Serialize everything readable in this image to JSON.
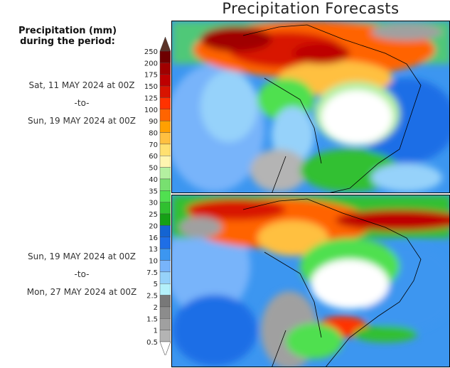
{
  "title": "Precipitation Forecasts",
  "legend_title_lines": [
    "Precipitation (mm)",
    "during the period:"
  ],
  "periods": [
    {
      "start": "Sat, 11 MAY 2024 at 00Z",
      "sep": "-to-",
      "end": "Sun, 19 MAY 2024 at 00Z"
    },
    {
      "start": "Sun, 19 MAY 2024 at 00Z",
      "sep": "-to-",
      "end": "Mon, 27 MAY 2024 at 00Z"
    }
  ],
  "chart_data": {
    "type": "heatmap",
    "title": "Precipitation Forecasts",
    "units": "mm",
    "colorbar": {
      "labels": [
        "250",
        "200",
        "175",
        "150",
        "125",
        "100",
        "90",
        "80",
        "70",
        "60",
        "50",
        "40",
        "35",
        "30",
        "25",
        "20",
        "16",
        "13",
        "10",
        "7.5",
        "5",
        "2.5",
        "2",
        "1.5",
        "1",
        "0.5"
      ],
      "colors": [
        "#6e0000",
        "#a00000",
        "#be0000",
        "#d81400",
        "#ff3200",
        "#ff6400",
        "#ffa000",
        "#ffc040",
        "#ffe070",
        "#fff5b0",
        "#b4f0a0",
        "#78e070",
        "#50e050",
        "#30c030",
        "#16a016",
        "#1464d2",
        "#1e6ee6",
        "#3c96f0",
        "#78b4fa",
        "#96d2fa",
        "#b4f0fa",
        "#787878",
        "#8c8c8c",
        "#a0a0a0",
        "#b4b4b4"
      ],
      "over_color": "#5a3228",
      "under_color": "#ffffff"
    }
  }
}
